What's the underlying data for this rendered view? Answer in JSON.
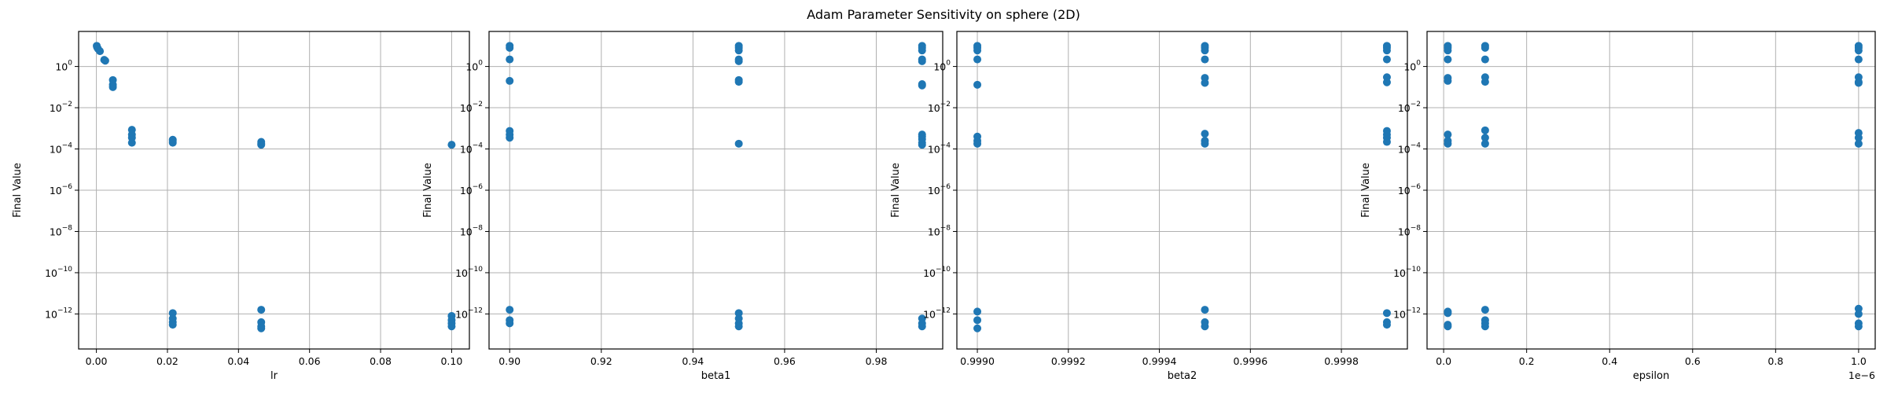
{
  "figure_title": "Adam Parameter Sensitivity on sphere (2D)",
  "colors": {
    "points": "#1f77b4",
    "grid": "#b0b0b0"
  },
  "chart_data": [
    {
      "type": "scatter",
      "xlabel": "lr",
      "ylabel": "Final Value",
      "yscale": "log",
      "xlim": [
        -0.005,
        0.105
      ],
      "ylim": [
        2e-14,
        50
      ],
      "x_ticks": [
        0.0,
        0.02,
        0.04,
        0.06,
        0.08,
        0.1
      ],
      "x_tick_labels": [
        "0.00",
        "0.02",
        "0.04",
        "0.06",
        "0.08",
        "0.10"
      ],
      "x_offset_label": "",
      "y_ticks": [
        1e-12,
        1e-10,
        1e-08,
        1e-06,
        0.0001,
        0.01,
        1
      ],
      "y_tick_labels": [
        [
          "10",
          "−12"
        ],
        [
          "10",
          "−10"
        ],
        [
          "10",
          "−8"
        ],
        [
          "10",
          "−6"
        ],
        [
          "10",
          "−4"
        ],
        [
          "10",
          "−2"
        ],
        [
          "10",
          "0"
        ]
      ],
      "grid": true,
      "points": [
        [
          0.0001,
          10
        ],
        [
          0.00021,
          8.5
        ],
        [
          0.00046,
          7.2
        ],
        [
          0.001,
          5.5
        ],
        [
          0.0022,
          2.1
        ],
        [
          0.0025,
          1.9
        ],
        [
          0.00464,
          0.22
        ],
        [
          0.00464,
          0.13
        ],
        [
          0.00464,
          0.1
        ],
        [
          0.01,
          0.00085
        ],
        [
          0.01,
          0.0005
        ],
        [
          0.01,
          0.00035
        ],
        [
          0.01,
          0.0002
        ],
        [
          0.0215,
          0.00028
        ],
        [
          0.0215,
          0.00024
        ],
        [
          0.0215,
          0.0002
        ],
        [
          0.0215,
          1.1e-12
        ],
        [
          0.0215,
          6e-13
        ],
        [
          0.0215,
          4e-13
        ],
        [
          0.0215,
          3e-13
        ],
        [
          0.0464,
          0.00022
        ],
        [
          0.0464,
          0.00018
        ],
        [
          0.0464,
          0.00016
        ],
        [
          0.0464,
          1.6e-12
        ],
        [
          0.0464,
          4e-13
        ],
        [
          0.0464,
          2.5e-13
        ],
        [
          0.0464,
          2e-13
        ],
        [
          0.1,
          0.00016
        ],
        [
          0.1,
          8e-13
        ],
        [
          0.1,
          5e-13
        ],
        [
          0.1,
          3.5e-13
        ],
        [
          0.1,
          2.5e-13
        ]
      ]
    },
    {
      "type": "scatter",
      "xlabel": "beta1",
      "ylabel": "Final Value",
      "yscale": "log",
      "xlim": [
        0.8955,
        0.9945
      ],
      "ylim": [
        2e-14,
        50
      ],
      "x_ticks": [
        0.9,
        0.92,
        0.94,
        0.96,
        0.98
      ],
      "x_tick_labels": [
        "0.90",
        "0.92",
        "0.94",
        "0.96",
        "0.98"
      ],
      "x_offset_label": "",
      "y_ticks": [
        1e-12,
        1e-10,
        1e-08,
        1e-06,
        0.0001,
        0.01,
        1
      ],
      "y_tick_labels": [
        [
          "10",
          "−12"
        ],
        [
          "10",
          "−10"
        ],
        [
          "10",
          "−8"
        ],
        [
          "10",
          "−6"
        ],
        [
          "10",
          "−4"
        ],
        [
          "10",
          "−2"
        ],
        [
          "10",
          "0"
        ]
      ],
      "grid": true,
      "points": [
        [
          0.9,
          10
        ],
        [
          0.9,
          8
        ],
        [
          0.9,
          2.2
        ],
        [
          0.9,
          0.2
        ],
        [
          0.9,
          0.00075
        ],
        [
          0.9,
          0.0005
        ],
        [
          0.9,
          0.00035
        ],
        [
          0.9,
          1.6e-12
        ],
        [
          0.9,
          5e-13
        ],
        [
          0.9,
          3.5e-13
        ],
        [
          0.95,
          10
        ],
        [
          0.95,
          8
        ],
        [
          0.95,
          6
        ],
        [
          0.95,
          2.2
        ],
        [
          0.95,
          1.8
        ],
        [
          0.95,
          0.22
        ],
        [
          0.95,
          0.18
        ],
        [
          0.95,
          0.00018
        ],
        [
          0.95,
          1.1e-12
        ],
        [
          0.95,
          6e-13
        ],
        [
          0.95,
          3.5e-13
        ],
        [
          0.95,
          2.5e-13
        ],
        [
          0.99,
          10
        ],
        [
          0.99,
          8
        ],
        [
          0.99,
          6
        ],
        [
          0.99,
          2.2
        ],
        [
          0.99,
          1.8
        ],
        [
          0.99,
          0.14
        ],
        [
          0.99,
          0.12
        ],
        [
          0.99,
          0.0005
        ],
        [
          0.99,
          0.0004
        ],
        [
          0.99,
          0.0003
        ],
        [
          0.99,
          0.0002
        ],
        [
          0.99,
          0.00016
        ],
        [
          0.99,
          6e-13
        ],
        [
          0.99,
          3.5e-13
        ],
        [
          0.99,
          2.5e-13
        ]
      ]
    },
    {
      "type": "scatter",
      "xlabel": "beta2",
      "ylabel": "Final Value",
      "yscale": "log",
      "xlim": [
        0.998955,
        0.999945
      ],
      "ylim": [
        2e-14,
        50
      ],
      "x_ticks": [
        0.999,
        0.9992,
        0.9994,
        0.9996,
        0.9998
      ],
      "x_tick_labels": [
        "0.9990",
        "0.9992",
        "0.9994",
        "0.9996",
        "0.9998"
      ],
      "x_offset_label": "",
      "y_ticks": [
        1e-12,
        1e-10,
        1e-08,
        1e-06,
        0.0001,
        0.01,
        1
      ],
      "y_tick_labels": [
        [
          "10",
          "−12"
        ],
        [
          "10",
          "−10"
        ],
        [
          "10",
          "−8"
        ],
        [
          "10",
          "−6"
        ],
        [
          "10",
          "−4"
        ],
        [
          "10",
          "−2"
        ],
        [
          "10",
          "0"
        ]
      ],
      "grid": true,
      "points": [
        [
          0.999,
          10
        ],
        [
          0.999,
          8
        ],
        [
          0.999,
          6
        ],
        [
          0.999,
          2.2
        ],
        [
          0.999,
          0.13
        ],
        [
          0.999,
          0.0004
        ],
        [
          0.999,
          0.00025
        ],
        [
          0.999,
          0.00018
        ],
        [
          0.999,
          1.3e-12
        ],
        [
          0.999,
          5e-13
        ],
        [
          0.999,
          2e-13
        ],
        [
          0.9995,
          10
        ],
        [
          0.9995,
          8
        ],
        [
          0.9995,
          6
        ],
        [
          0.9995,
          2.2
        ],
        [
          0.9995,
          0.28
        ],
        [
          0.9995,
          0.16
        ],
        [
          0.9995,
          0.00055
        ],
        [
          0.9995,
          0.00025
        ],
        [
          0.9995,
          0.00018
        ],
        [
          0.9995,
          1.6e-12
        ],
        [
          0.9995,
          4e-13
        ],
        [
          0.9995,
          2.5e-13
        ],
        [
          0.9999,
          10
        ],
        [
          0.9999,
          8
        ],
        [
          0.9999,
          6
        ],
        [
          0.9999,
          2.2
        ],
        [
          0.9999,
          0.3
        ],
        [
          0.9999,
          0.17
        ],
        [
          0.9999,
          0.00075
        ],
        [
          0.9999,
          0.0005
        ],
        [
          0.9999,
          0.00035
        ],
        [
          0.9999,
          0.00022
        ],
        [
          0.9999,
          1.1e-12
        ],
        [
          0.9999,
          4e-13
        ],
        [
          0.9999,
          3e-13
        ]
      ]
    },
    {
      "type": "scatter",
      "xlabel": "epsilon",
      "ylabel": "Final Value",
      "yscale": "log",
      "xlim": [
        -4e-08,
        1.04e-06
      ],
      "ylim": [
        2e-14,
        50
      ],
      "x_ticks": [
        0,
        2e-07,
        4e-07,
        6e-07,
        8e-07,
        1e-06
      ],
      "x_tick_labels": [
        "0.0",
        "0.2",
        "0.4",
        "0.6",
        "0.8",
        "1.0"
      ],
      "x_offset_label": "1e−6",
      "y_ticks": [
        1e-12,
        1e-10,
        1e-08,
        1e-06,
        0.0001,
        0.01,
        1
      ],
      "y_tick_labels": [
        [
          "10",
          "−12"
        ],
        [
          "10",
          "−10"
        ],
        [
          "10",
          "−8"
        ],
        [
          "10",
          "−6"
        ],
        [
          "10",
          "−4"
        ],
        [
          "10",
          "−2"
        ],
        [
          "10",
          "0"
        ]
      ],
      "grid": true,
      "points": [
        [
          1e-08,
          10
        ],
        [
          1e-08,
          8
        ],
        [
          1e-08,
          6
        ],
        [
          1e-08,
          2.2
        ],
        [
          1e-08,
          0.28
        ],
        [
          1e-08,
          0.2
        ],
        [
          1e-08,
          0.0005
        ],
        [
          1e-08,
          0.00025
        ],
        [
          1e-08,
          0.00018
        ],
        [
          1e-08,
          1.3e-12
        ],
        [
          1e-08,
          1.1e-12
        ],
        [
          1e-08,
          3e-13
        ],
        [
          1e-08,
          2.5e-13
        ],
        [
          1e-07,
          10
        ],
        [
          1e-07,
          8
        ],
        [
          1e-07,
          2.2
        ],
        [
          1e-07,
          0.3
        ],
        [
          1e-07,
          0.18
        ],
        [
          1e-07,
          0.0008
        ],
        [
          1e-07,
          0.00035
        ],
        [
          1e-07,
          0.00018
        ],
        [
          1e-07,
          1.6e-12
        ],
        [
          1e-07,
          5e-13
        ],
        [
          1e-07,
          3.5e-13
        ],
        [
          1e-07,
          2.5e-13
        ],
        [
          1e-06,
          10
        ],
        [
          1e-06,
          8
        ],
        [
          1e-06,
          6
        ],
        [
          1e-06,
          2.2
        ],
        [
          1e-06,
          0.3
        ],
        [
          1e-06,
          0.18
        ],
        [
          1e-06,
          0.16
        ],
        [
          1e-06,
          0.0006
        ],
        [
          1e-06,
          0.00035
        ],
        [
          1e-06,
          0.00018
        ],
        [
          1e-06,
          1.8e-12
        ],
        [
          1e-06,
          1e-12
        ],
        [
          1e-06,
          3.5e-13
        ],
        [
          1e-06,
          2.5e-13
        ]
      ]
    }
  ]
}
